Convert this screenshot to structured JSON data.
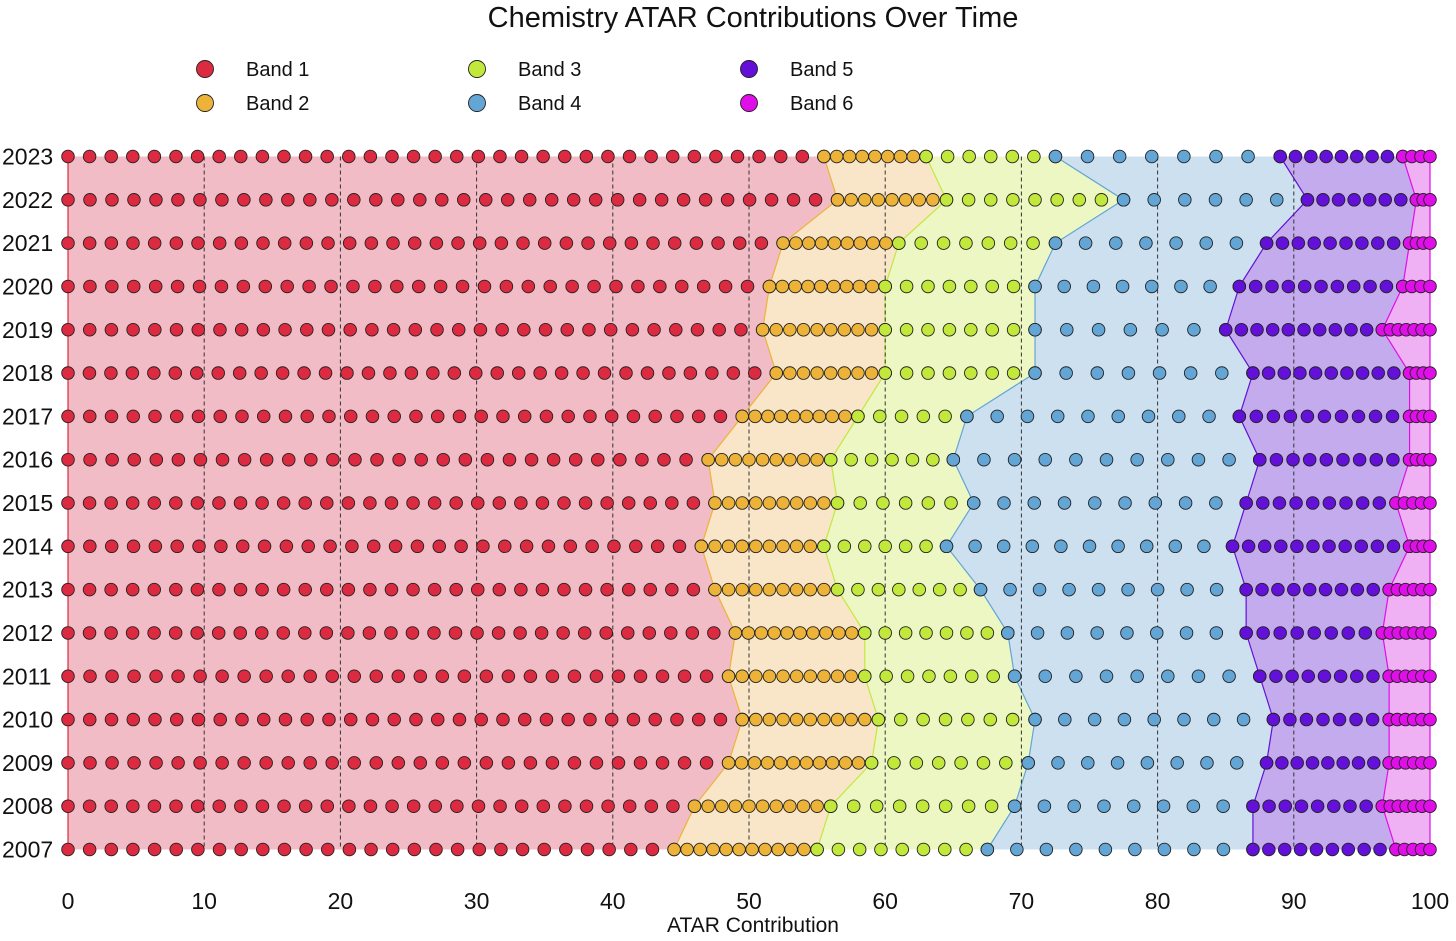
{
  "chart_data": {
    "type": "scatter",
    "title": "Chemistry ATAR Contributions Over Time",
    "xlabel": "ATAR Contribution",
    "ylabel": "",
    "xlim": [
      0,
      100
    ],
    "grid": "vertical-dashed",
    "legend_position": "top",
    "x_ticks": [
      0,
      10,
      20,
      30,
      40,
      50,
      60,
      70,
      80,
      90,
      100
    ],
    "bands": [
      {
        "name": "Band 1",
        "color": "#dc2a41",
        "fill": "#f2bcc6"
      },
      {
        "name": "Band 2",
        "color": "#edb338",
        "fill": "#f9e5c7"
      },
      {
        "name": "Band 3",
        "color": "#c3e83c",
        "fill": "#ecf7c4"
      },
      {
        "name": "Band 4",
        "color": "#63a5d5",
        "fill": "#cde0f0"
      },
      {
        "name": "Band 5",
        "color": "#6310d8",
        "fill": "#c4abed"
      },
      {
        "name": "Band 6",
        "color": "#e00ee8",
        "fill": "#efb1f3"
      }
    ],
    "years": [
      "2023",
      "2022",
      "2021",
      "2020",
      "2019",
      "2018",
      "2017",
      "2016",
      "2015",
      "2014",
      "2013",
      "2012",
      "2011",
      "2010",
      "2009",
      "2008",
      "2007"
    ],
    "band_boundaries": {
      "2023": [
        55.5,
        63.0,
        72.5,
        89.0,
        98.0
      ],
      "2022": [
        56.5,
        64.5,
        77.5,
        91.0,
        99.0
      ],
      "2021": [
        52.5,
        61.0,
        72.5,
        88.0,
        98.5
      ],
      "2020": [
        51.5,
        60.0,
        71.0,
        86.0,
        98.0
      ],
      "2019": [
        51.0,
        60.0,
        71.0,
        85.0,
        96.5
      ],
      "2018": [
        52.0,
        60.0,
        71.0,
        87.0,
        98.5
      ],
      "2017": [
        49.5,
        58.0,
        66.0,
        86.0,
        98.5
      ],
      "2016": [
        47.0,
        56.0,
        65.0,
        87.5,
        98.5
      ],
      "2015": [
        47.5,
        56.5,
        66.5,
        86.5,
        97.5
      ],
      "2014": [
        46.5,
        55.5,
        64.5,
        85.5,
        98.5
      ],
      "2013": [
        47.5,
        56.5,
        67.0,
        86.5,
        97.0
      ],
      "2012": [
        49.0,
        58.5,
        69.0,
        86.5,
        96.5
      ],
      "2011": [
        48.5,
        58.5,
        69.5,
        87.5,
        97.0
      ],
      "2010": [
        49.5,
        59.5,
        71.0,
        88.5,
        97.0
      ],
      "2009": [
        48.5,
        59.0,
        70.5,
        88.0,
        97.0
      ],
      "2008": [
        46.0,
        56.0,
        69.5,
        87.0,
        96.5
      ],
      "2007": [
        44.5,
        55.0,
        67.5,
        87.0,
        97.5
      ]
    }
  }
}
